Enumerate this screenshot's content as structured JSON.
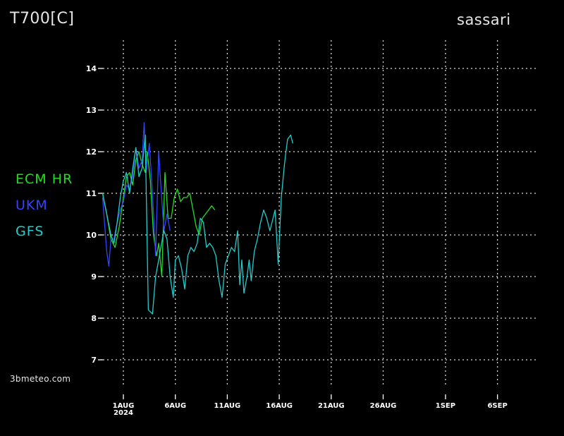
{
  "header": {
    "title": "T700[C]",
    "location": "sassari"
  },
  "watermark": "3bmeteo.com",
  "colors": {
    "background": "#000000",
    "grid": "#d9d9d9",
    "text": "#ffffff",
    "ecm": "#22dd22",
    "ukm": "#3344ff",
    "gfs": "#22cccc"
  },
  "chart_data": {
    "type": "line",
    "title": "T700[C]",
    "subtitle": "sassari",
    "grid": true,
    "legend_placement": "left",
    "ylim": [
      6.5,
      14.8
    ],
    "yticks": [
      7,
      8,
      9,
      10,
      11,
      12,
      13,
      14
    ],
    "xlim": [
      -1,
      40.3
    ],
    "xticks": [
      {
        "day": 1,
        "label": "1AUG",
        "sublabel": "2024"
      },
      {
        "day": 6,
        "label": "6AUG"
      },
      {
        "day": 11,
        "label": "11AUG"
      },
      {
        "day": 16,
        "label": "16AUG"
      },
      {
        "day": 21,
        "label": "21AUG"
      },
      {
        "day": 26,
        "label": "26AUG"
      },
      {
        "day": 32,
        "label": "1SEP"
      },
      {
        "day": 37,
        "label": "6SEP"
      }
    ],
    "series": [
      {
        "name": "ECM HR",
        "color": "#22dd22",
        "points": [
          [
            -1.0,
            11.0
          ],
          [
            -0.6,
            10.5
          ],
          [
            -0.2,
            9.9
          ],
          [
            0.2,
            9.7
          ],
          [
            0.6,
            10.2
          ],
          [
            1.0,
            10.9
          ],
          [
            1.3,
            11.4
          ],
          [
            1.6,
            11.5
          ],
          [
            1.9,
            11.2
          ],
          [
            2.2,
            11.8
          ],
          [
            2.5,
            12.0
          ],
          [
            2.8,
            11.7
          ],
          [
            3.1,
            11.5
          ],
          [
            3.3,
            12.0
          ],
          [
            3.6,
            11.3
          ],
          [
            3.9,
            10.0
          ],
          [
            4.2,
            9.5
          ],
          [
            4.4,
            9.8
          ],
          [
            4.7,
            9.0
          ],
          [
            5.0,
            11.5
          ],
          [
            5.3,
            10.4
          ],
          [
            5.6,
            10.4
          ],
          [
            5.9,
            10.9
          ],
          [
            6.2,
            11.1
          ],
          [
            6.5,
            10.8
          ],
          [
            6.8,
            10.9
          ],
          [
            7.1,
            10.9
          ],
          [
            7.4,
            11.0
          ],
          [
            7.7,
            10.6
          ],
          [
            8.0,
            10.2
          ],
          [
            8.3,
            10.0
          ],
          [
            8.6,
            10.4
          ],
          [
            8.9,
            10.5
          ],
          [
            9.2,
            10.6
          ],
          [
            9.5,
            10.7
          ],
          [
            9.8,
            10.6
          ]
        ]
      },
      {
        "name": "UKM",
        "color": "#3344ff",
        "points": [
          [
            -1.0,
            10.9
          ],
          [
            -0.6,
            9.6
          ],
          [
            -0.4,
            9.25
          ],
          [
            -0.2,
            9.9
          ],
          [
            0.1,
            9.9
          ],
          [
            0.4,
            10.3
          ],
          [
            0.7,
            10.6
          ],
          [
            1.0,
            10.8
          ],
          [
            1.3,
            11.2
          ],
          [
            1.6,
            11.1
          ],
          [
            1.9,
            11.4
          ],
          [
            2.2,
            12.1
          ],
          [
            2.5,
            11.6
          ],
          [
            2.8,
            11.8
          ],
          [
            3.0,
            12.7
          ],
          [
            3.2,
            11.5
          ],
          [
            3.5,
            12.2
          ],
          [
            3.8,
            11.0
          ],
          [
            4.1,
            9.5
          ],
          [
            4.4,
            12.0
          ],
          [
            4.6,
            11.2
          ],
          [
            4.9,
            10.1
          ],
          [
            5.2,
            10.5
          ],
          [
            5.5,
            10.1
          ]
        ]
      },
      {
        "name": "GFS",
        "color": "#22cccc",
        "points": [
          [
            -1.0,
            11.0
          ],
          [
            -0.6,
            10.5
          ],
          [
            -0.2,
            10.0
          ],
          [
            0.1,
            9.8
          ],
          [
            0.4,
            10.3
          ],
          [
            0.7,
            10.9
          ],
          [
            1.0,
            11.3
          ],
          [
            1.3,
            11.5
          ],
          [
            1.6,
            11.0
          ],
          [
            1.9,
            11.6
          ],
          [
            2.2,
            12.1
          ],
          [
            2.5,
            11.4
          ],
          [
            2.8,
            11.6
          ],
          [
            3.1,
            12.4
          ],
          [
            3.4,
            8.2
          ],
          [
            3.8,
            8.1
          ],
          [
            4.1,
            9.0
          ],
          [
            4.4,
            9.4
          ],
          [
            4.6,
            9.7
          ],
          [
            4.9,
            10.1
          ],
          [
            5.2,
            9.9
          ],
          [
            5.5,
            9.0
          ],
          [
            5.8,
            8.5
          ],
          [
            6.0,
            9.4
          ],
          [
            6.3,
            9.5
          ],
          [
            6.6,
            9.2
          ],
          [
            6.9,
            8.7
          ],
          [
            7.2,
            9.5
          ],
          [
            7.5,
            9.7
          ],
          [
            7.8,
            9.6
          ],
          [
            8.1,
            9.8
          ],
          [
            8.4,
            10.4
          ],
          [
            8.7,
            10.3
          ],
          [
            9.0,
            9.7
          ],
          [
            9.3,
            9.8
          ],
          [
            9.6,
            9.7
          ],
          [
            9.9,
            9.5
          ],
          [
            10.2,
            8.9
          ],
          [
            10.5,
            8.5
          ],
          [
            10.8,
            9.3
          ],
          [
            11.1,
            9.5
          ],
          [
            11.4,
            9.7
          ],
          [
            11.7,
            9.6
          ],
          [
            12.0,
            10.1
          ],
          [
            12.2,
            8.8
          ],
          [
            12.4,
            9.4
          ],
          [
            12.6,
            8.6
          ],
          [
            12.9,
            9.0
          ],
          [
            13.1,
            9.4
          ],
          [
            13.3,
            8.9
          ],
          [
            13.6,
            9.6
          ],
          [
            13.9,
            9.9
          ],
          [
            14.2,
            10.3
          ],
          [
            14.5,
            10.6
          ],
          [
            14.8,
            10.4
          ],
          [
            15.1,
            10.1
          ],
          [
            15.4,
            10.4
          ],
          [
            15.6,
            10.6
          ],
          [
            15.9,
            9.3
          ],
          [
            16.2,
            10.9
          ],
          [
            16.5,
            11.7
          ],
          [
            16.8,
            12.3
          ],
          [
            17.1,
            12.4
          ],
          [
            17.3,
            12.2
          ]
        ]
      }
    ]
  }
}
